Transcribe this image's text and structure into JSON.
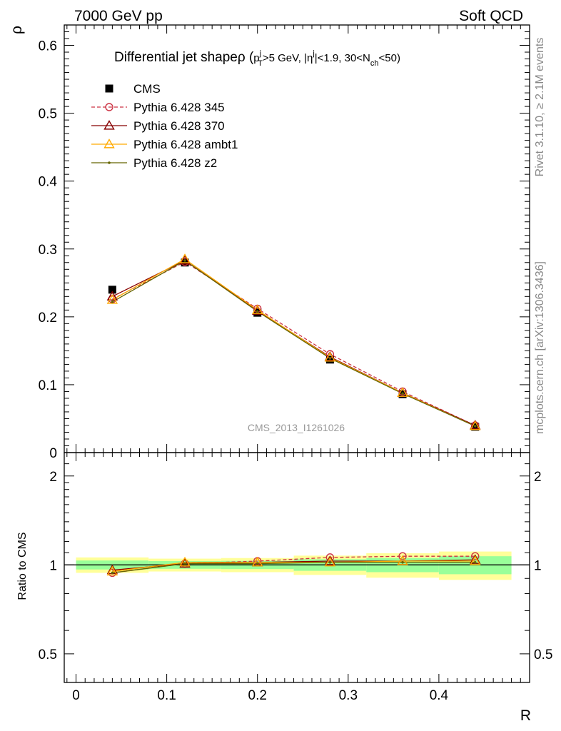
{
  "header": {
    "left": "7000 GeV pp",
    "right": "Soft QCD"
  },
  "side_text": {
    "rivet": "Rivet 3.1.10, ≥ 2.1M events",
    "source": "mcplots.cern.ch [arXiv:1306.3436]"
  },
  "chart_data": [
    {
      "type": "line",
      "title": "Differential jet shapeρ (p_T^j>5 GeV, |η^j|<1.9, 30<N_ch<50)",
      "title_main": "Differential jet shape",
      "title_rho": "ρ (",
      "title_p": "p",
      "title_sup_j": "j",
      "title_sub_T": "T",
      "title_mid": ">5 GeV, |η",
      "title_sup_j2": "j",
      "title_mid2": "|<1.9, 30<N",
      "title_sub_ch": "ch",
      "title_end": "<50)",
      "watermark": "CMS_2013_I1261026",
      "xlabel": "R",
      "ylabel": "ρ",
      "xlim": [
        -0.013,
        0.5
      ],
      "ylim": [
        0,
        0.63
      ],
      "yticks": [
        0,
        0.1,
        0.2,
        0.3,
        0.4,
        0.5,
        0.6
      ],
      "ytick_labels": [
        "0",
        "0.1",
        "0.2",
        "0.3",
        "0.4",
        "0.5",
        "0.6"
      ],
      "legend_position": "top-left",
      "x": [
        0.04,
        0.12,
        0.2,
        0.28,
        0.36,
        0.44
      ],
      "data": {
        "name": "CMS",
        "values": [
          0.24,
          0.28,
          0.206,
          0.137,
          0.086,
          0.038
        ]
      },
      "series": [
        {
          "name": "Pythia 6.428 345",
          "color": "#cc3344",
          "dashed": true,
          "marker": "circle-open",
          "values": [
            0.226,
            0.281,
            0.212,
            0.145,
            0.09,
            0.04
          ]
        },
        {
          "name": "Pythia 6.428 370",
          "color": "#880000",
          "dashed": false,
          "marker": "triangle-open",
          "values": [
            0.23,
            0.283,
            0.209,
            0.141,
            0.088,
            0.04
          ]
        },
        {
          "name": "Pythia 6.428 ambt1",
          "color": "#ffaa00",
          "dashed": false,
          "marker": "triangle-open",
          "values": [
            0.225,
            0.285,
            0.21,
            0.14,
            0.088,
            0.039
          ]
        },
        {
          "name": "Pythia 6.428 z2",
          "color": "#666600",
          "dashed": false,
          "marker": "dot",
          "values": [
            0.222,
            0.283,
            0.208,
            0.139,
            0.087,
            0.039
          ]
        }
      ]
    },
    {
      "type": "line",
      "xlabel": "R",
      "ylabel": "Ratio to CMS",
      "xlim": [
        -0.013,
        0.5
      ],
      "ylim": [
        0.4,
        2.4
      ],
      "log_y": true,
      "xticks": [
        0,
        0.1,
        0.2,
        0.3,
        0.4
      ],
      "xtick_labels": [
        "0",
        "0.1",
        "0.2",
        "0.3",
        "0.4"
      ],
      "yticks": [
        0.5,
        1,
        2
      ],
      "ytick_labels": [
        "0.5",
        "1",
        "2"
      ],
      "band_edges": [
        0,
        0.08,
        0.16,
        0.24,
        0.32,
        0.4,
        0.48
      ],
      "band_inner": [
        0.035,
        0.03,
        0.032,
        0.045,
        0.055,
        0.07
      ],
      "band_outer": [
        0.06,
        0.05,
        0.055,
        0.075,
        0.095,
        0.11
      ],
      "band_inner_color": "#99ff99",
      "band_outer_color": "#ffff99",
      "x": [
        0.04,
        0.12,
        0.2,
        0.28,
        0.36,
        0.44
      ],
      "series": [
        {
          "name": "Pythia 6.428 345",
          "color": "#cc3344",
          "dashed": true,
          "marker": "circle-open",
          "values": [
            0.94,
            1.01,
            1.03,
            1.06,
            1.07,
            1.07
          ]
        },
        {
          "name": "Pythia 6.428 370",
          "color": "#880000",
          "dashed": false,
          "marker": "triangle-open",
          "values": [
            0.96,
            1.01,
            1.02,
            1.03,
            1.03,
            1.04
          ]
        },
        {
          "name": "Pythia 6.428 ambt1",
          "color": "#ffaa00",
          "dashed": false,
          "marker": "triangle-open",
          "values": [
            0.95,
            1.02,
            1.02,
            1.02,
            1.03,
            1.03
          ]
        },
        {
          "name": "Pythia 6.428 z2",
          "color": "#666600",
          "dashed": false,
          "marker": "dot",
          "values": [
            0.94,
            1.01,
            1.01,
            1.02,
            1.02,
            1.02
          ]
        }
      ]
    }
  ]
}
